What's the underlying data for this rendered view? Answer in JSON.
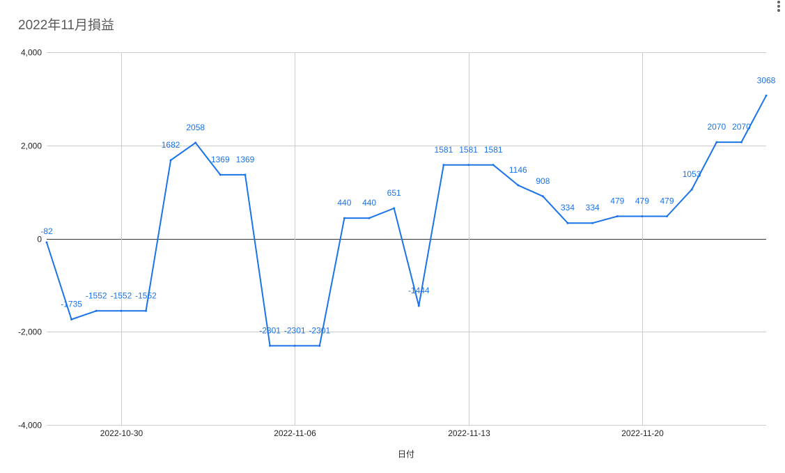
{
  "chart_data": {
    "type": "line",
    "title": "2022年11月損益",
    "xlabel": "日付",
    "ylabel": "",
    "ylim": [
      -4000,
      4000
    ],
    "yticks": [
      4000,
      2000,
      0,
      -2000,
      -4000
    ],
    "ytick_labels": [
      "4,000",
      "2,000",
      "0",
      "-2,000",
      "-4,000"
    ],
    "xlim": [
      "2022-10-27",
      "2022-11-25"
    ],
    "xticks": [
      "2022-10-30",
      "2022-11-06",
      "2022-11-13",
      "2022-11-20"
    ],
    "grid": true,
    "legend": "none",
    "series": [
      {
        "color": "#1a73e8",
        "x": [
          "2022-10-27",
          "2022-10-28",
          "2022-10-29",
          "2022-10-30",
          "2022-10-31",
          "2022-11-01",
          "2022-11-02",
          "2022-11-03",
          "2022-11-04",
          "2022-11-05",
          "2022-11-06",
          "2022-11-07",
          "2022-11-08",
          "2022-11-09",
          "2022-11-10",
          "2022-11-11",
          "2022-11-12",
          "2022-11-13",
          "2022-11-14",
          "2022-11-15",
          "2022-11-16",
          "2022-11-17",
          "2022-11-18",
          "2022-11-19",
          "2022-11-20",
          "2022-11-21",
          "2022-11-22",
          "2022-11-23",
          "2022-11-24",
          "2022-11-25"
        ],
        "values": [
          -82,
          -1735,
          -1552,
          -1552,
          -1552,
          1682,
          2058,
          1369,
          1369,
          -2301,
          -2301,
          -2301,
          440,
          440,
          651,
          -1444,
          1581,
          1581,
          1581,
          1146,
          908,
          334,
          334,
          479,
          479,
          479,
          1053,
          2070,
          2070,
          3068
        ],
        "labels": [
          "-82",
          "-1735",
          "-1552",
          "-1552",
          "-1552",
          "1682",
          "2058",
          "1369",
          "1369",
          "-2301",
          "-2301",
          "-2301",
          "440",
          "440",
          "651",
          "-1444",
          "1581",
          "1581",
          "1581",
          "1146",
          "908",
          "334",
          "334",
          "479",
          "479",
          "479",
          "1053",
          "2070",
          "2070",
          "3068"
        ]
      }
    ]
  }
}
